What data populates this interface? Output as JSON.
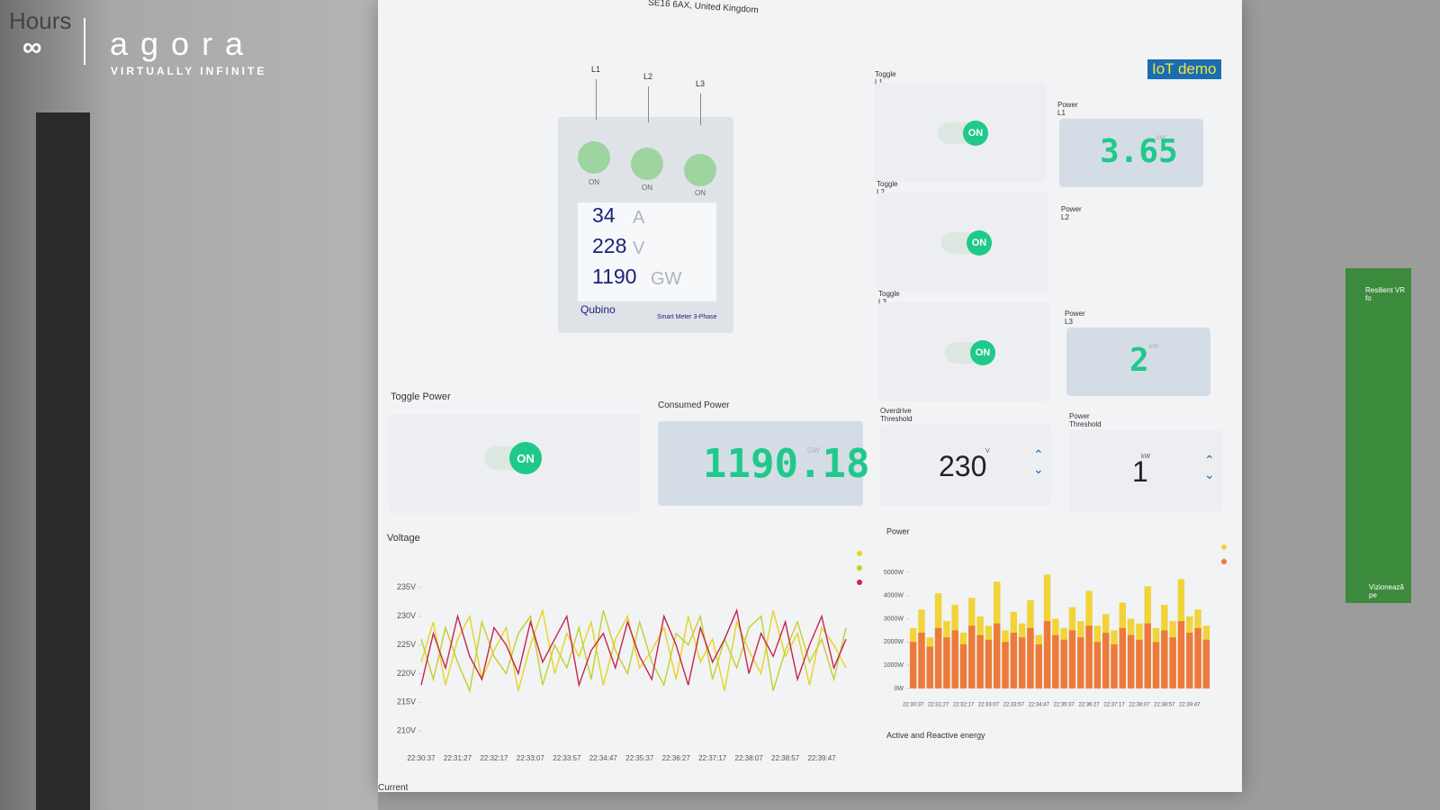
{
  "branding": {
    "corner": "Hours",
    "logo": "agora",
    "tagline": "VIRTUALLY INFINITE"
  },
  "address": "SE16 6AX, United Kingdom",
  "badge": "IoT demo",
  "meter": {
    "lines": [
      "L1",
      "L2",
      "L3"
    ],
    "switch_states": [
      "ON",
      "ON",
      "ON"
    ],
    "readings": [
      {
        "value": 34,
        "unit": "A"
      },
      {
        "value": 228,
        "unit": "V"
      },
      {
        "value": 1190,
        "unit": "GW"
      }
    ],
    "brand": "Qubino",
    "model": "Smart Meter 3-Phase"
  },
  "toggles": [
    {
      "label": "Toggle L1",
      "state": "ON"
    },
    {
      "label": "Toggle L2",
      "state": "ON"
    },
    {
      "label": "Toggle L3",
      "state": "ON"
    }
  ],
  "power_displays": [
    {
      "label": "Power L1",
      "value": 3.65,
      "unit": "kW"
    },
    {
      "label": "Power L2"
    },
    {
      "label": "Power L3",
      "value": 2,
      "unit": "kW"
    }
  ],
  "toggle_power": {
    "label": "Toggle Power",
    "state": "ON"
  },
  "consumed_power": {
    "label": "Consumed Power",
    "value": 1190.18,
    "unit": "GW"
  },
  "thresholds": [
    {
      "label": "Overdrive Threshold",
      "value": 230,
      "unit": "V"
    },
    {
      "label": "Power Threshold",
      "value": 1,
      "unit": "kW"
    }
  ],
  "section_labels": [
    "Active and Reactive energy",
    "Current"
  ],
  "side_panel": {
    "title": "Resilient VR fo",
    "button": "Vizionează pe"
  },
  "chart_data": [
    {
      "type": "line",
      "title": "Voltage",
      "categories": [
        "22:30:37",
        null,
        null,
        "22:31:27",
        null,
        null,
        "22:32:17",
        null,
        null,
        "22:33:07",
        null,
        null,
        "22:33:57",
        null,
        null,
        "22:34:47",
        null,
        null,
        "22:35:37",
        null,
        null,
        "22:36:27",
        null,
        null,
        "22:37:17",
        null,
        null,
        "22:38:07",
        null,
        null,
        "22:38:57",
        null,
        null,
        "22:39:47",
        null,
        null
      ],
      "series": [
        {
          "color": "#e6d51e",
          "values": [
            222,
            229,
            218,
            226,
            230,
            219,
            224,
            228,
            217,
            225,
            231,
            220,
            227,
            223,
            229,
            218,
            226,
            230,
            221,
            224,
            228,
            219,
            230,
            222,
            226,
            217,
            229,
            224,
            220,
            231,
            223,
            227,
            218,
            228,
            225,
            221
          ]
        },
        {
          "color": "#c3cf2c",
          "values": [
            226,
            219,
            228,
            222,
            217,
            229,
            223,
            220,
            227,
            230,
            218,
            225,
            221,
            228,
            219,
            231,
            224,
            220,
            229,
            222,
            218,
            227,
            225,
            230,
            219,
            226,
            221,
            228,
            230,
            217,
            224,
            229,
            222,
            226,
            219,
            228
          ]
        },
        {
          "color": "#c8244c",
          "values": [
            218,
            227,
            221,
            230,
            223,
            219,
            228,
            225,
            220,
            229,
            222,
            226,
            230,
            218,
            224,
            227,
            221,
            229,
            223,
            219,
            230,
            225,
            218,
            228,
            222,
            226,
            231,
            220,
            227,
            223,
            229,
            219,
            225,
            230,
            221,
            226
          ]
        }
      ],
      "ylim": [
        208,
        237
      ],
      "yticks": [
        {
          "value": 210,
          "label": "210V"
        },
        {
          "value": 215,
          "label": "215V"
        },
        {
          "value": 220,
          "label": "220V"
        },
        {
          "value": 225,
          "label": "225V"
        },
        {
          "value": 230,
          "label": "230V"
        },
        {
          "value": 235,
          "label": "235V"
        }
      ]
    },
    {
      "type": "bar",
      "title": "Power",
      "categories": [
        "22:30:37",
        null,
        null,
        "22:31:27",
        null,
        null,
        "22:32:17",
        null,
        null,
        "22:33:07",
        null,
        null,
        "22:33:57",
        null,
        null,
        "22:34:47",
        null,
        null,
        "22:35:37",
        null,
        null,
        "22:36:27",
        null,
        null,
        "22:37:17",
        null,
        null,
        "22:38:07",
        null,
        null,
        "22:38:57",
        null,
        null,
        "22:39:47",
        null,
        null
      ],
      "series": [
        {
          "color": "#f0d43a",
          "values": [
            2600,
            3400,
            2200,
            4100,
            2900,
            3600,
            2400,
            3900,
            3100,
            2700,
            4600,
            2500,
            3300,
            2800,
            3800,
            2300,
            4900,
            3000,
            2600,
            3500,
            2900,
            4200,
            2700,
            3200,
            2500,
            3700,
            3000,
            2800,
            4400,
            2600,
            3600,
            2900,
            4700,
            3100,
            3400,
            2700
          ]
        },
        {
          "color": "#ec7a3c",
          "values": [
            2000,
            2400,
            1800,
            2600,
            2200,
            2500,
            1900,
            2700,
            2300,
            2100,
            2800,
            2000,
            2400,
            2200,
            2600,
            1900,
            2900,
            2300,
            2100,
            2500,
            2200,
            2700,
            2000,
            2400,
            1900,
            2600,
            2300,
            2100,
            2800,
            2000,
            2500,
            2200,
            2900,
            2400,
            2600,
            2100
          ]
        }
      ],
      "ylim": [
        0,
        5500
      ],
      "yticks": [
        {
          "value": 0,
          "label": "0W"
        },
        {
          "value": 1000,
          "label": "1000W"
        },
        {
          "value": 2000,
          "label": "2000W"
        },
        {
          "value": 3000,
          "label": "3000W"
        },
        {
          "value": 4000,
          "label": "4000W"
        },
        {
          "value": 5000,
          "label": "5000W"
        }
      ]
    }
  ]
}
